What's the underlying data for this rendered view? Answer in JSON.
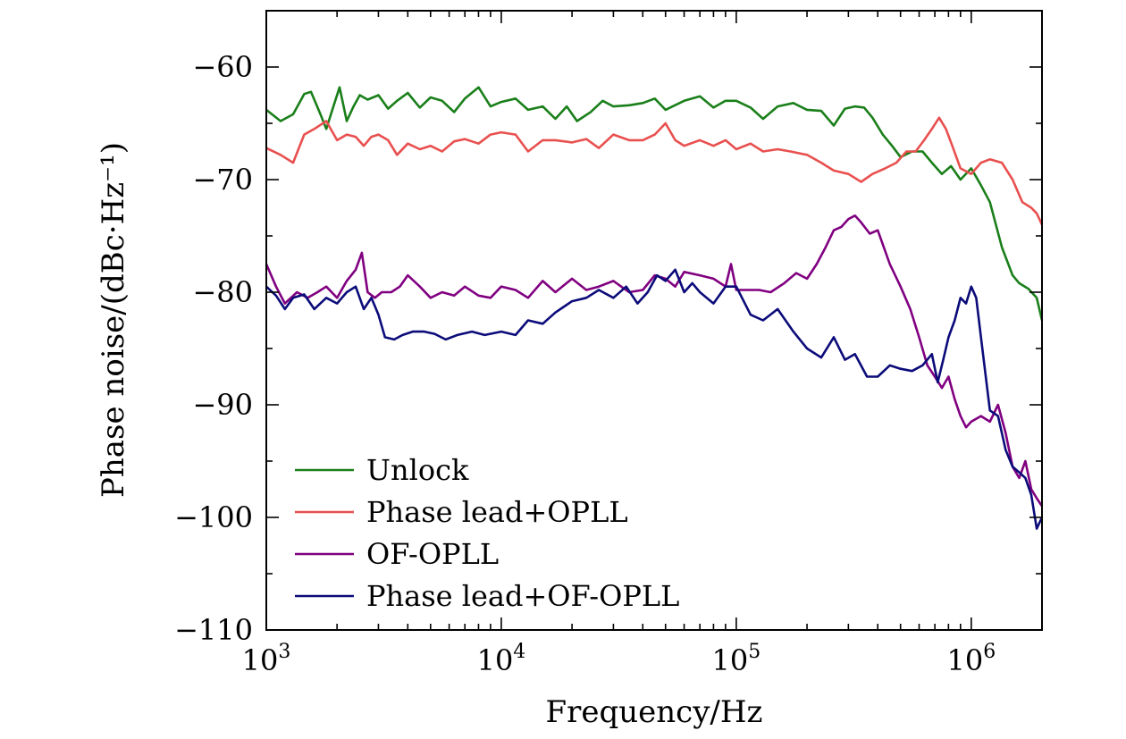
{
  "chart_data": {
    "type": "line",
    "xlabel": "Frequency/Hz",
    "ylabel": "Phase noise/(dBc·Hz⁻¹)",
    "x_scale": "log",
    "xlim": [
      1000,
      2000000
    ],
    "ylim": [
      -110,
      -55
    ],
    "x_ticks": [
      {
        "value": 1000,
        "base": "10",
        "exp": "3"
      },
      {
        "value": 10000,
        "base": "10",
        "exp": "4"
      },
      {
        "value": 100000,
        "base": "10",
        "exp": "5"
      },
      {
        "value": 1000000,
        "base": "10",
        "exp": "6"
      }
    ],
    "y_ticks": [
      {
        "value": -60,
        "label": "−60"
      },
      {
        "value": -70,
        "label": "−70"
      },
      {
        "value": -80,
        "label": "−80"
      },
      {
        "value": -90,
        "label": "−90"
      },
      {
        "value": -100,
        "label": "−100"
      },
      {
        "value": -110,
        "label": "−110"
      }
    ],
    "grid": false,
    "legend_position": "bottom-left",
    "series": [
      {
        "name": "Unlock",
        "color": "#1a7f1a",
        "x": [
          1000,
          1150,
          1300,
          1450,
          1550,
          1700,
          1800,
          1950,
          2050,
          2200,
          2350,
          2500,
          2700,
          3000,
          3300,
          3600,
          4000,
          4500,
          5000,
          5600,
          6300,
          7000,
          8000,
          9000,
          10000,
          11500,
          13000,
          15000,
          17000,
          19000,
          21000,
          24000,
          27000,
          30000,
          35000,
          40000,
          45000,
          50000,
          60000,
          70000,
          80000,
          90000,
          100000,
          115000,
          130000,
          150000,
          175000,
          200000,
          230000,
          260000,
          290000,
          320000,
          350000,
          380000,
          420000,
          460000,
          500000,
          560000,
          620000,
          680000,
          750000,
          820000,
          900000,
          1000000,
          1100000,
          1200000,
          1350000,
          1500000,
          1600000,
          1750000,
          1900000,
          2000000
        ],
        "y": [
          -63.8,
          -64.8,
          -64.2,
          -62.4,
          -62.2,
          -64.2,
          -65.5,
          -63.2,
          -61.8,
          -64.8,
          -63.5,
          -62.5,
          -62.9,
          -62.5,
          -63.7,
          -63.0,
          -62.3,
          -63.6,
          -62.7,
          -63.0,
          -64.0,
          -62.8,
          -61.8,
          -63.5,
          -63.1,
          -62.8,
          -63.8,
          -63.5,
          -64.6,
          -63.5,
          -64.8,
          -64.0,
          -63.0,
          -63.5,
          -63.4,
          -63.2,
          -62.8,
          -63.8,
          -63.0,
          -62.6,
          -63.6,
          -63.0,
          -63.0,
          -63.6,
          -64.6,
          -63.5,
          -63.2,
          -63.8,
          -63.9,
          -65.2,
          -63.7,
          -63.5,
          -63.6,
          -64.5,
          -66.0,
          -67.0,
          -68.0,
          -67.5,
          -67.5,
          -68.5,
          -69.5,
          -68.8,
          -70.0,
          -69.0,
          -70.5,
          -72.0,
          -76.0,
          -78.5,
          -79.2,
          -79.7,
          -80.5,
          -82.5
        ]
      },
      {
        "name": "Phase lead+OPLL",
        "color": "#e8504f",
        "x": [
          1000,
          1150,
          1300,
          1450,
          1600,
          1800,
          2000,
          2200,
          2400,
          2600,
          2800,
          3000,
          3300,
          3600,
          4000,
          4500,
          5000,
          5600,
          6300,
          7000,
          8000,
          9000,
          10000,
          11500,
          13000,
          15000,
          17000,
          20000,
          23000,
          26000,
          30000,
          35000,
          40000,
          45000,
          50000,
          55000,
          60000,
          70000,
          80000,
          90000,
          100000,
          115000,
          130000,
          150000,
          170000,
          200000,
          230000,
          260000,
          300000,
          340000,
          380000,
          430000,
          480000,
          530000,
          580000,
          630000,
          680000,
          730000,
          780000,
          830000,
          900000,
          1000000,
          1100000,
          1200000,
          1350000,
          1500000,
          1650000,
          1800000,
          1900000,
          2000000
        ],
        "y": [
          -67.2,
          -67.8,
          -68.5,
          -66.0,
          -65.5,
          -64.8,
          -66.5,
          -66.0,
          -66.2,
          -67.0,
          -66.2,
          -66.0,
          -66.5,
          -67.8,
          -66.8,
          -67.3,
          -67.0,
          -67.5,
          -66.6,
          -66.4,
          -66.8,
          -66.0,
          -65.8,
          -66.0,
          -67.5,
          -66.5,
          -66.5,
          -66.7,
          -66.4,
          -67.2,
          -66.0,
          -66.5,
          -66.5,
          -66.0,
          -65.0,
          -66.5,
          -67.0,
          -66.5,
          -67.0,
          -66.5,
          -67.3,
          -66.8,
          -67.5,
          -67.3,
          -67.5,
          -67.8,
          -68.5,
          -69.2,
          -69.5,
          -70.2,
          -69.5,
          -69.0,
          -68.5,
          -67.5,
          -67.5,
          -66.5,
          -65.5,
          -64.5,
          -65.5,
          -67.0,
          -69.0,
          -69.5,
          -68.5,
          -68.2,
          -68.5,
          -70.0,
          -72.0,
          -72.5,
          -73.0,
          -74.0
        ]
      },
      {
        "name": "OF-OPLL",
        "color": "#800080",
        "x": [
          1000,
          1100,
          1200,
          1350,
          1500,
          1650,
          1800,
          2000,
          2200,
          2400,
          2550,
          2700,
          2900,
          3100,
          3400,
          3700,
          4000,
          4500,
          5000,
          5600,
          6300,
          7000,
          8000,
          9000,
          10000,
          11500,
          13000,
          15000,
          17000,
          20000,
          23000,
          26000,
          30000,
          35000,
          40000,
          45000,
          50000,
          55000,
          60000,
          70000,
          80000,
          90000,
          95000,
          100000,
          110000,
          125000,
          140000,
          160000,
          180000,
          200000,
          220000,
          240000,
          260000,
          280000,
          300000,
          320000,
          340000,
          370000,
          400000,
          450000,
          500000,
          550000,
          600000,
          650000,
          700000,
          750000,
          800000,
          850000,
          900000,
          950000,
          1000000,
          1100000,
          1200000,
          1300000,
          1400000,
          1500000,
          1600000,
          1700000,
          1800000,
          1900000,
          2000000
        ],
        "y": [
          -77.5,
          -79.5,
          -81.0,
          -80.0,
          -80.5,
          -80.0,
          -79.5,
          -80.5,
          -79.0,
          -78.0,
          -76.5,
          -80.0,
          -80.5,
          -80.0,
          -80.0,
          -79.5,
          -78.5,
          -79.5,
          -80.5,
          -80.0,
          -80.3,
          -79.5,
          -80.3,
          -80.5,
          -79.5,
          -79.8,
          -80.5,
          -79.0,
          -80.0,
          -78.8,
          -79.8,
          -79.5,
          -79.0,
          -80.0,
          -79.8,
          -78.5,
          -78.8,
          -79.5,
          -78.2,
          -78.5,
          -78.8,
          -79.5,
          -77.5,
          -79.8,
          -79.8,
          -79.8,
          -80.0,
          -79.2,
          -78.3,
          -78.8,
          -77.5,
          -76.0,
          -74.5,
          -74.2,
          -73.5,
          -73.2,
          -73.8,
          -74.8,
          -74.5,
          -77.5,
          -79.5,
          -81.5,
          -84.0,
          -86.5,
          -87.5,
          -88.5,
          -87.5,
          -89.5,
          -91.0,
          -92.0,
          -91.5,
          -91.0,
          -91.5,
          -90.0,
          -92.5,
          -95.5,
          -96.5,
          -95.0,
          -97.5,
          -98.3,
          -99.0
        ]
      },
      {
        "name": "Phase lead+OF-OPLL",
        "color": "#0b0b7a",
        "x": [
          1000,
          1100,
          1200,
          1300,
          1450,
          1600,
          1800,
          2000,
          2200,
          2400,
          2600,
          2800,
          3000,
          3200,
          3500,
          3800,
          4200,
          4700,
          5200,
          5800,
          6500,
          7500,
          8500,
          10000,
          11500,
          13000,
          15000,
          17000,
          20000,
          23000,
          26000,
          30000,
          34000,
          38000,
          42000,
          46000,
          50000,
          55000,
          60000,
          65000,
          70000,
          80000,
          90000,
          100000,
          115000,
          130000,
          150000,
          175000,
          200000,
          230000,
          260000,
          290000,
          320000,
          360000,
          400000,
          450000,
          500000,
          560000,
          620000,
          680000,
          720000,
          760000,
          800000,
          850000,
          900000,
          950000,
          1000000,
          1050000,
          1100000,
          1200000,
          1300000,
          1400000,
          1500000,
          1600000,
          1700000,
          1800000,
          1900000,
          2000000
        ],
        "y": [
          -79.5,
          -80.3,
          -81.5,
          -80.5,
          -80.2,
          -81.5,
          -80.5,
          -81.0,
          -80.0,
          -79.5,
          -81.5,
          -80.5,
          -82.0,
          -84.0,
          -84.2,
          -83.8,
          -83.5,
          -83.5,
          -83.7,
          -84.2,
          -83.8,
          -83.5,
          -83.8,
          -83.5,
          -83.8,
          -82.5,
          -82.8,
          -81.8,
          -80.8,
          -80.5,
          -79.8,
          -80.5,
          -79.5,
          -81.0,
          -80.0,
          -78.5,
          -79.0,
          -78.0,
          -80.0,
          -79.2,
          -80.0,
          -81.0,
          -79.5,
          -79.5,
          -82.0,
          -82.5,
          -81.5,
          -83.5,
          -85.0,
          -85.8,
          -84.0,
          -86.0,
          -85.5,
          -87.5,
          -87.5,
          -86.5,
          -86.8,
          -87.0,
          -86.5,
          -85.5,
          -88.0,
          -86.0,
          -84.0,
          -82.5,
          -80.5,
          -81.0,
          -79.5,
          -80.5,
          -84.0,
          -90.5,
          -91.0,
          -94.0,
          -95.5,
          -96.0,
          -96.5,
          -98.0,
          -101.0,
          -100.0
        ]
      }
    ]
  }
}
